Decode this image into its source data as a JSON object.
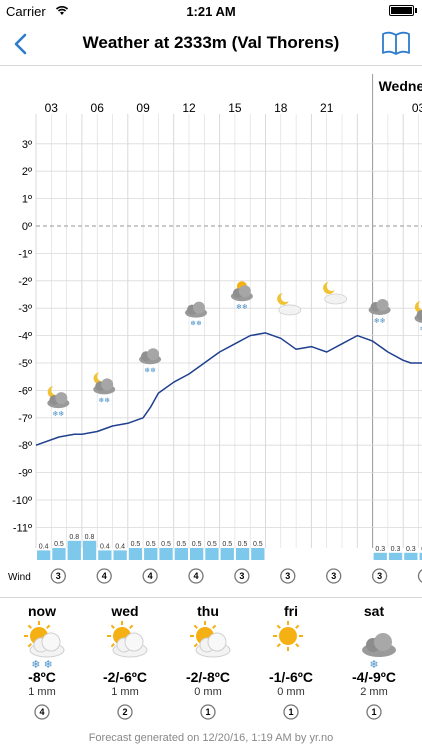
{
  "status_bar": {
    "carrier": "Carrier",
    "time": "1:21 AM"
  },
  "nav": {
    "title": "Weather at 2333m (Val Thorens)",
    "back_icon": "chevron-left-icon",
    "book_icon": "book-icon"
  },
  "chart_data": {
    "type": "line",
    "y_ticks": [
      "3º",
      "2º",
      "1º",
      "0º",
      "-1º",
      "-2º",
      "-3º",
      "-4º",
      "-5º",
      "-6º",
      "-7º",
      "-8º",
      "-9º",
      "-10º",
      "-11º"
    ],
    "hour_labels": [
      "03",
      "06",
      "09",
      "12",
      "15",
      "18",
      "21",
      "03"
    ],
    "day_label": "Wedne",
    "temperature": {
      "hours": [
        0,
        1.5,
        2.5,
        3,
        4,
        5,
        6,
        7,
        7.5,
        8,
        9,
        10,
        11,
        12,
        13,
        14,
        15,
        16,
        16.5,
        17,
        18,
        18.5,
        19,
        20,
        21,
        22,
        23,
        24,
        24.5,
        25,
        26,
        27
      ],
      "values": [
        -8.0,
        -7.7,
        -7.6,
        -7.6,
        -7.5,
        -7.3,
        -7.2,
        -7.0,
        -6.6,
        -6.1,
        -5.7,
        -5.4,
        -5.0,
        -4.6,
        -4.3,
        -4.0,
        -3.9,
        -4.1,
        -4.3,
        -4.5,
        -4.4,
        -4.5,
        -4.6,
        -4.3,
        -4.0,
        -4.2,
        -4.6,
        -4.9,
        -5.0,
        -5.0,
        -5.0,
        -5.0
      ]
    },
    "precipitation": [
      {
        "hour": 0,
        "value": "0.4"
      },
      {
        "hour": 1,
        "value": "0.5"
      },
      {
        "hour": 2,
        "value": "0.8"
      },
      {
        "hour": 3,
        "value": "0.8"
      },
      {
        "hour": 4,
        "value": "0.4"
      },
      {
        "hour": 5,
        "value": "0.4"
      },
      {
        "hour": 6,
        "value": "0.5"
      },
      {
        "hour": 7,
        "value": "0.5"
      },
      {
        "hour": 8,
        "value": "0.5"
      },
      {
        "hour": 9,
        "value": "0.5"
      },
      {
        "hour": 10,
        "value": "0.5"
      },
      {
        "hour": 11,
        "value": "0.5"
      },
      {
        "hour": 12,
        "value": "0.5"
      },
      {
        "hour": 13,
        "value": "0.5"
      },
      {
        "hour": 14,
        "value": "0.5"
      },
      {
        "hour": 22,
        "value": "0.3"
      },
      {
        "hour": 23,
        "value": "0.3"
      },
      {
        "hour": 24,
        "value": "0.3"
      },
      {
        "hour": 25,
        "value": "0.3"
      },
      {
        "hour": 26,
        "value": "0.5"
      }
    ],
    "weather_icons": [
      {
        "hour": 1,
        "temp": -6.5,
        "kind": "moon-cloud-snow"
      },
      {
        "hour": 4,
        "temp": -6.0,
        "kind": "moon-cloud-snow"
      },
      {
        "hour": 7,
        "temp": -4.9,
        "kind": "cloud-snow"
      },
      {
        "hour": 10,
        "temp": -3.2,
        "kind": "cloud-snow"
      },
      {
        "hour": 13,
        "temp": -2.6,
        "kind": "sun-cloud-snow"
      },
      {
        "hour": 16,
        "temp": -3.1,
        "kind": "moon-cloud"
      },
      {
        "hour": 19,
        "temp": -2.7,
        "kind": "moon-cloud"
      },
      {
        "hour": 22,
        "temp": -3.1,
        "kind": "cloud-snow"
      },
      {
        "hour": 25,
        "temp": -3.4,
        "kind": "moon-cloud-snow"
      }
    ],
    "wind_label": "Wind",
    "wind": [
      {
        "hour": 1,
        "speed": "3"
      },
      {
        "hour": 4,
        "speed": "4"
      },
      {
        "hour": 7,
        "speed": "4"
      },
      {
        "hour": 10,
        "speed": "4"
      },
      {
        "hour": 13,
        "speed": "3"
      },
      {
        "hour": 16,
        "speed": "3"
      },
      {
        "hour": 19,
        "speed": "3"
      },
      {
        "hour": 22,
        "speed": "3"
      },
      {
        "hour": 25,
        "speed": "2"
      }
    ]
  },
  "days": [
    {
      "name": "now",
      "icon": "sun-cloud-icon",
      "snow": "❄ ❄",
      "temp": "-8ºC",
      "precip": "1 mm",
      "wind": "4"
    },
    {
      "name": "wed",
      "icon": "sun-cloud-icon",
      "snow": "",
      "temp": "-2/-6ºC",
      "precip": "1 mm",
      "wind": "2"
    },
    {
      "name": "thu",
      "icon": "sun-cloud-icon",
      "snow": "",
      "temp": "-2/-8ºC",
      "precip": "0 mm",
      "wind": "1"
    },
    {
      "name": "fri",
      "icon": "sun-icon",
      "snow": "",
      "temp": "-1/-6ºC",
      "precip": "0 mm",
      "wind": "1"
    },
    {
      "name": "sat",
      "icon": "cloud-snow-icon",
      "snow": "❄",
      "temp": "-4/-9ºC",
      "precip": "2 mm",
      "wind": "1"
    }
  ],
  "footer": {
    "text": "Forecast generated on 12/20/16, 1:19 AM by yr.no"
  },
  "colors": {
    "accent": "#2e7ccb",
    "line": "#1f3f8f",
    "precip": "#7ec8ec",
    "grid": "#d9d9d9"
  }
}
